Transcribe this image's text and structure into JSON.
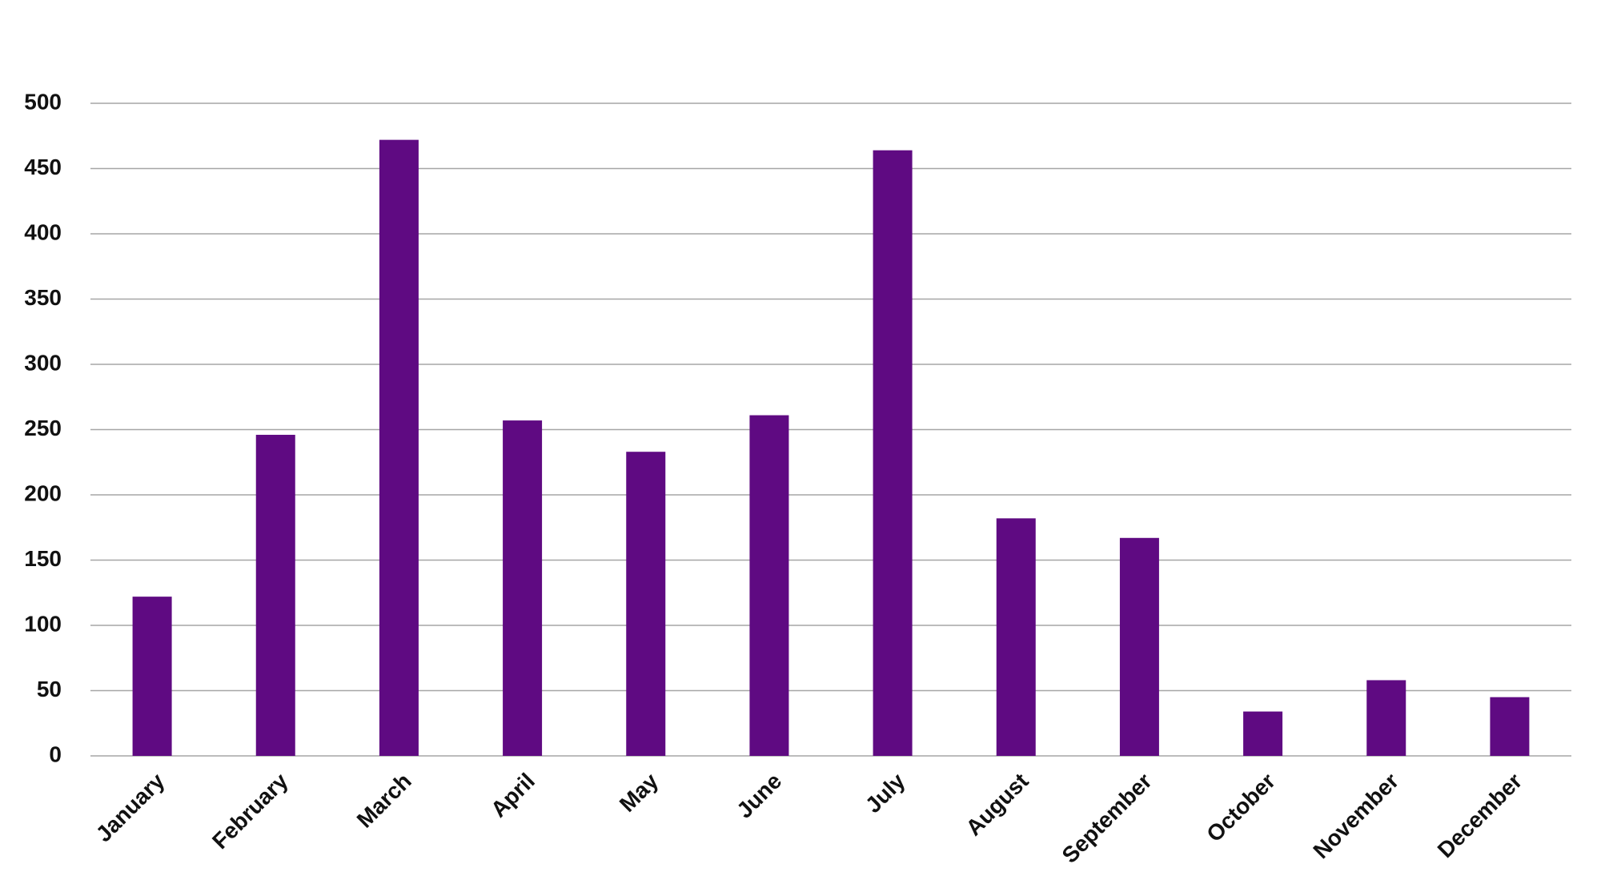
{
  "chart_data": {
    "type": "bar",
    "categories": [
      "January",
      "February",
      "March",
      "April",
      "May",
      "June",
      "July",
      "August",
      "September",
      "October",
      "November",
      "December"
    ],
    "values": [
      122,
      246,
      472,
      257,
      233,
      261,
      464,
      182,
      167,
      34,
      58,
      45
    ],
    "color": "#5f0a82",
    "ylim": [
      0,
      500
    ],
    "yticks": [
      0,
      50,
      100,
      150,
      200,
      250,
      300,
      350,
      400,
      450,
      500
    ],
    "grid": true
  }
}
